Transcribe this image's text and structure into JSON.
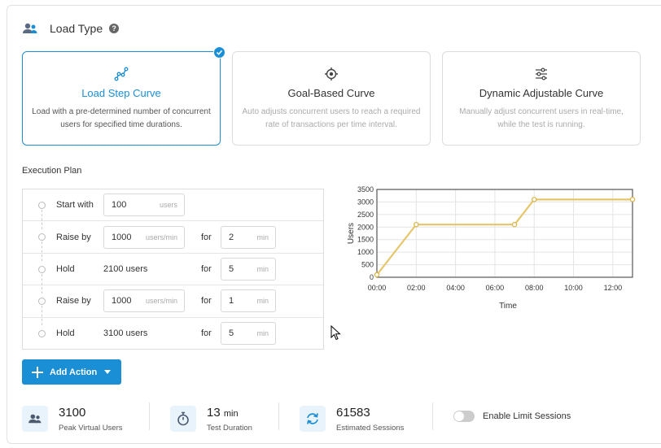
{
  "header": {
    "title": "Load Type",
    "help_icon": "question-icon"
  },
  "cards": [
    {
      "title": "Load Step Curve",
      "desc": "Load with a pre-determined number of concurrent users for specified time durations.",
      "selected": true
    },
    {
      "title": "Goal-Based Curve",
      "desc": "Auto adjusts concurrent users to reach a required rate of transactions per time interval.",
      "selected": false
    },
    {
      "title": "Dynamic Adjustable Curve",
      "desc": "Manually adjust concurrent users in real-time, while the test is running.",
      "selected": false
    }
  ],
  "plan": {
    "label": "Execution Plan",
    "for_label": "for",
    "rows": [
      {
        "action": "Start with",
        "value": "100",
        "unit": "users"
      },
      {
        "action": "Raise by",
        "value": "1000",
        "unit": "users/min",
        "duration": "2",
        "duration_unit": "min"
      },
      {
        "action": "Hold",
        "static": "2100 users",
        "duration": "5",
        "duration_unit": "min"
      },
      {
        "action": "Raise by",
        "value": "1000",
        "unit": "users/min",
        "duration": "1",
        "duration_unit": "min"
      },
      {
        "action": "Hold",
        "static": "3100 users",
        "duration": "5",
        "duration_unit": "min"
      }
    ]
  },
  "add_action": {
    "label": "Add Action"
  },
  "stats": {
    "peak_users": {
      "value": "3100",
      "label": "Peak Virtual Users"
    },
    "duration": {
      "value": "13",
      "unit": "min",
      "label": "Test Duration"
    },
    "sessions": {
      "value": "61583",
      "label": "Estimated Sessions"
    }
  },
  "limit_sessions": {
    "label": "Enable Limit Sessions",
    "enabled": false
  },
  "colors": {
    "accent": "#1b8fd6",
    "line": "#e6c66a"
  },
  "chart_data": {
    "type": "line",
    "xlabel": "Time",
    "ylabel": "Users",
    "xlim": [
      0,
      13
    ],
    "ylim": [
      0,
      3500
    ],
    "xticks": [
      "00:00",
      "02:00",
      "04:00",
      "06:00",
      "08:00",
      "10:00",
      "12:00"
    ],
    "yticks": [
      "0",
      "500",
      "1000",
      "1500",
      "2000",
      "2500",
      "3000",
      "3500"
    ],
    "x": [
      0,
      2,
      7,
      8,
      13
    ],
    "y": [
      100,
      2100,
      2100,
      3100,
      3100
    ],
    "grid": true
  }
}
